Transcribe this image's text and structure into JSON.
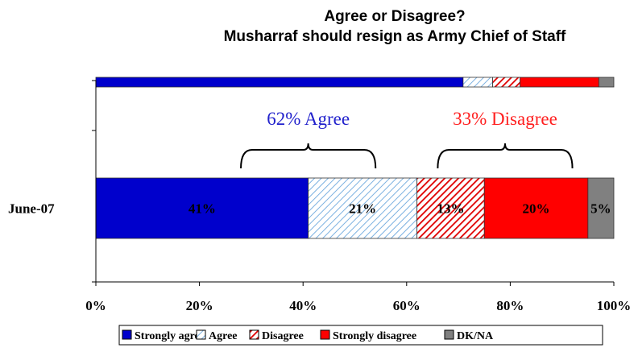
{
  "chart_data": {
    "type": "bar",
    "orientation": "horizontal",
    "stacked": true,
    "title": "Agree or Disagree?",
    "subtitle": "Musharraf should resign as Army Chief of Staff",
    "categories": [
      "",
      "June-07"
    ],
    "series": [
      {
        "name": "Strongly agree",
        "color": "#0000cc",
        "pattern": "solid",
        "values": [
          70.9,
          41
        ],
        "labels": [
          "",
          "41%"
        ]
      },
      {
        "name": "Agree",
        "color": "#7ab0e0",
        "pattern": "hatch-light",
        "values": [
          5.7,
          21
        ],
        "labels": [
          "",
          "21%"
        ]
      },
      {
        "name": "Disagree",
        "color": "#e00000",
        "pattern": "hatch-red",
        "values": [
          5.3,
          13
        ],
        "labels": [
          "",
          "13%"
        ]
      },
      {
        "name": "Strongly disagree",
        "color": "#ff0000",
        "pattern": "solid",
        "values": [
          15.2,
          20
        ],
        "labels": [
          "",
          "20%"
        ]
      },
      {
        "name": "DK/NA",
        "color": "#808080",
        "pattern": "solid",
        "values": [
          2.9,
          5
        ],
        "labels": [
          "",
          "5%"
        ]
      }
    ],
    "xlim": [
      0,
      100
    ],
    "xticks": [
      "0%",
      "20%",
      "40%",
      "60%",
      "80%",
      "100%"
    ],
    "xtick_values": [
      0,
      20,
      40,
      60,
      80,
      100
    ],
    "legend_position": "bottom",
    "grid": false,
    "annotations": [
      {
        "text": "62% Agree",
        "color": "#2222cc",
        "brace_from": 28,
        "brace_to": 54
      },
      {
        "text": "33% Disagree",
        "color": "#ff2020",
        "brace_from": 66,
        "brace_to": 92
      }
    ]
  }
}
